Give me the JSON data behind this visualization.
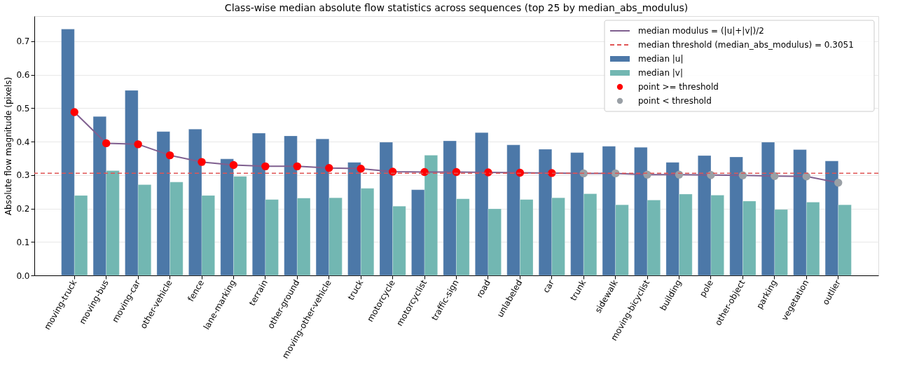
{
  "chart_data": {
    "type": "bar",
    "title": "Class-wise median absolute flow statistics across sequences (top 25 by median_abs_modulus)",
    "ylabel": "Absolute flow magnitude (pixels)",
    "categories": [
      "moving-truck",
      "moving-bus",
      "moving-car",
      "other-vehicle",
      "fence",
      "lane-marking",
      "terrain",
      "other-ground",
      "moving-other-vehicle",
      "truck",
      "motorcycle",
      "motorcyclist",
      "traffic-sign",
      "road",
      "unlabeled",
      "car",
      "trunk",
      "sidewalk",
      "moving-bicyclist",
      "building",
      "pole",
      "other-object",
      "parking",
      "vegetation",
      "outlier"
    ],
    "series": [
      {
        "name": "median modulus = (|u|+|v|)/2",
        "type": "line",
        "color": "#7f5f8f",
        "values": [
          0.488,
          0.395,
          0.392,
          0.359,
          0.339,
          0.33,
          0.326,
          0.326,
          0.321,
          0.319,
          0.31,
          0.309,
          0.309,
          0.308,
          0.307,
          0.306,
          0.305,
          0.305,
          0.301,
          0.301,
          0.3,
          0.299,
          0.297,
          0.296,
          0.277
        ]
      },
      {
        "name": "median |u|",
        "color": "#4c78a8",
        "values": [
          0.736,
          0.475,
          0.553,
          0.43,
          0.437,
          0.348,
          0.425,
          0.417,
          0.408,
          0.338,
          0.398,
          0.256,
          0.402,
          0.427,
          0.39,
          0.377,
          0.367,
          0.386,
          0.383,
          0.338,
          0.358,
          0.354,
          0.398,
          0.376,
          0.342
        ]
      },
      {
        "name": "median |v|",
        "color": "#72b7b2",
        "values": [
          0.239,
          0.313,
          0.271,
          0.279,
          0.239,
          0.296,
          0.227,
          0.231,
          0.232,
          0.26,
          0.207,
          0.359,
          0.229,
          0.199,
          0.227,
          0.232,
          0.244,
          0.211,
          0.225,
          0.243,
          0.24,
          0.222,
          0.197,
          0.219,
          0.211
        ]
      },
      {
        "name": "point >= threshold",
        "type": "scatter",
        "marker": "circle",
        "color": "#ff0000",
        "values": [
          0.488,
          0.395,
          0.392,
          0.359,
          0.339,
          0.33,
          0.326,
          0.326,
          0.321,
          0.319,
          0.31,
          0.309,
          0.309,
          0.308,
          0.307,
          0.306,
          null,
          null,
          null,
          null,
          null,
          null,
          null,
          null,
          null
        ]
      },
      {
        "name": "point < threshold",
        "type": "scatter",
        "marker": "circle",
        "color": "#9aa0a6",
        "values": [
          null,
          null,
          null,
          null,
          null,
          null,
          null,
          null,
          null,
          null,
          null,
          null,
          null,
          null,
          null,
          null,
          0.305,
          0.305,
          0.301,
          0.301,
          0.3,
          0.299,
          0.297,
          0.296,
          0.277
        ]
      }
    ],
    "ref_lines": [
      {
        "axis": "y",
        "value": 0.3051,
        "label": "median threshold (median_abs_modulus) = 0.3051",
        "color": "#e05555",
        "line_style": "dashed"
      }
    ],
    "ylim": [
      0,
      0.775
    ],
    "yticks": [
      {
        "value": 0,
        "label": "0.0"
      },
      0.1,
      0.2,
      0.3,
      0.4,
      0.5,
      0.6,
      0.7
    ],
    "grid": "y",
    "legend": "top right",
    "line_style": "solid"
  }
}
